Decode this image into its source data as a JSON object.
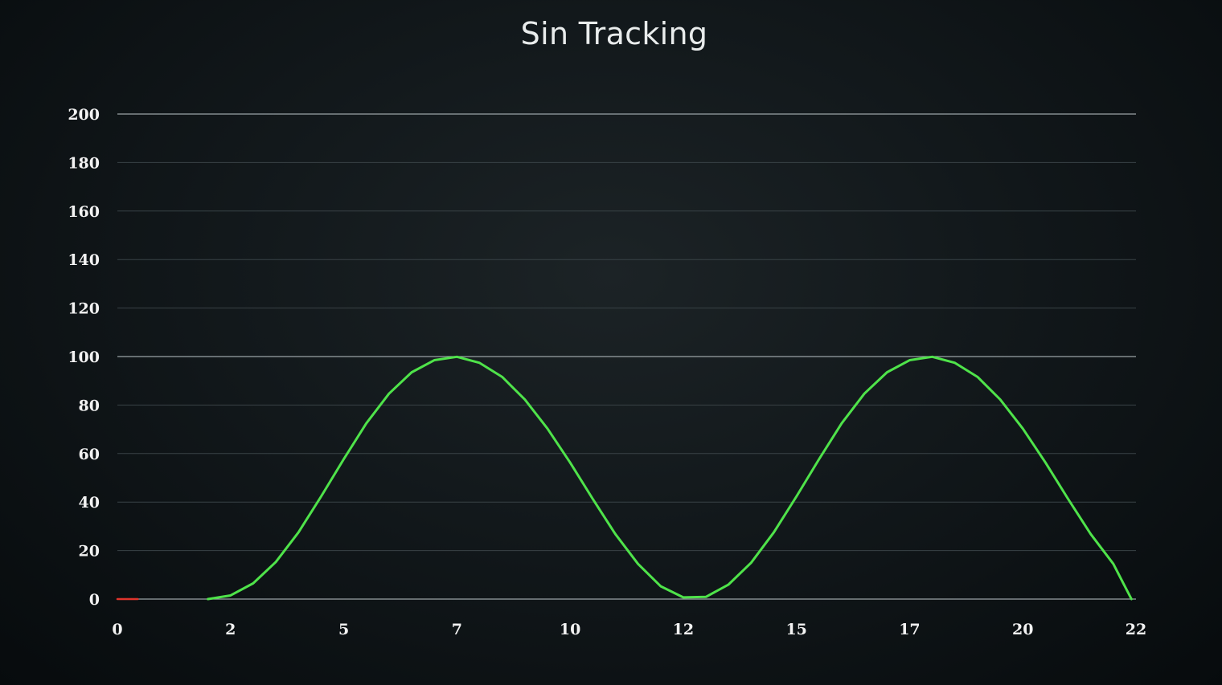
{
  "chart_data": {
    "type": "line",
    "title": "Sin Tracking",
    "xlabel": "",
    "ylabel": "",
    "xlim": [
      0,
      22.5
    ],
    "ylim": [
      0,
      200
    ],
    "grid": true,
    "x_ticks": [
      "0",
      "2",
      "5",
      "7",
      "10",
      "12",
      "15",
      "17",
      "20",
      "22"
    ],
    "x_tick_values": [
      0,
      2.5,
      5,
      7.5,
      10,
      12.5,
      15,
      17.5,
      20,
      22.5
    ],
    "y_ticks": [
      "0",
      "20",
      "40",
      "60",
      "80",
      "100",
      "120",
      "140",
      "160",
      "180",
      "200"
    ],
    "y_tick_values": [
      0,
      20,
      40,
      60,
      80,
      100,
      120,
      140,
      160,
      180,
      200
    ],
    "series": [
      {
        "color": "#4fe34a",
        "x": [
          2.0,
          2.5,
          3.0,
          3.5,
          4.0,
          4.5,
          5.0,
          5.5,
          6.0,
          6.5,
          7.0,
          7.5,
          8.0,
          8.5,
          9.0,
          9.5,
          10.0,
          10.5,
          11.0,
          11.5,
          12.0,
          12.5,
          13.0,
          13.5,
          14.0,
          14.5,
          15.0,
          15.5,
          16.0,
          16.5,
          17.0,
          17.5,
          18.0,
          18.5,
          19.0,
          19.5,
          20.0,
          20.5,
          21.0,
          21.5,
          22.0,
          22.4
        ],
        "y": [
          0.0,
          1.5,
          6.5,
          15.3,
          27.5,
          42.3,
          57.7,
          72.5,
          84.7,
          93.5,
          98.5,
          99.9,
          97.4,
          91.6,
          82.3,
          70.3,
          56.3,
          41.3,
          26.8,
          14.5,
          5.3,
          0.7,
          0.9,
          6.0,
          15.0,
          27.5,
          42.3,
          57.7,
          72.5,
          84.7,
          93.5,
          98.5,
          99.9,
          97.4,
          91.6,
          82.3,
          70.3,
          56.3,
          41.3,
          26.8,
          14.5,
          0.0
        ]
      },
      {
        "color": "#e0342c",
        "x": [
          0.0,
          0.45
        ],
        "y": [
          0.0,
          0.0
        ]
      }
    ]
  }
}
